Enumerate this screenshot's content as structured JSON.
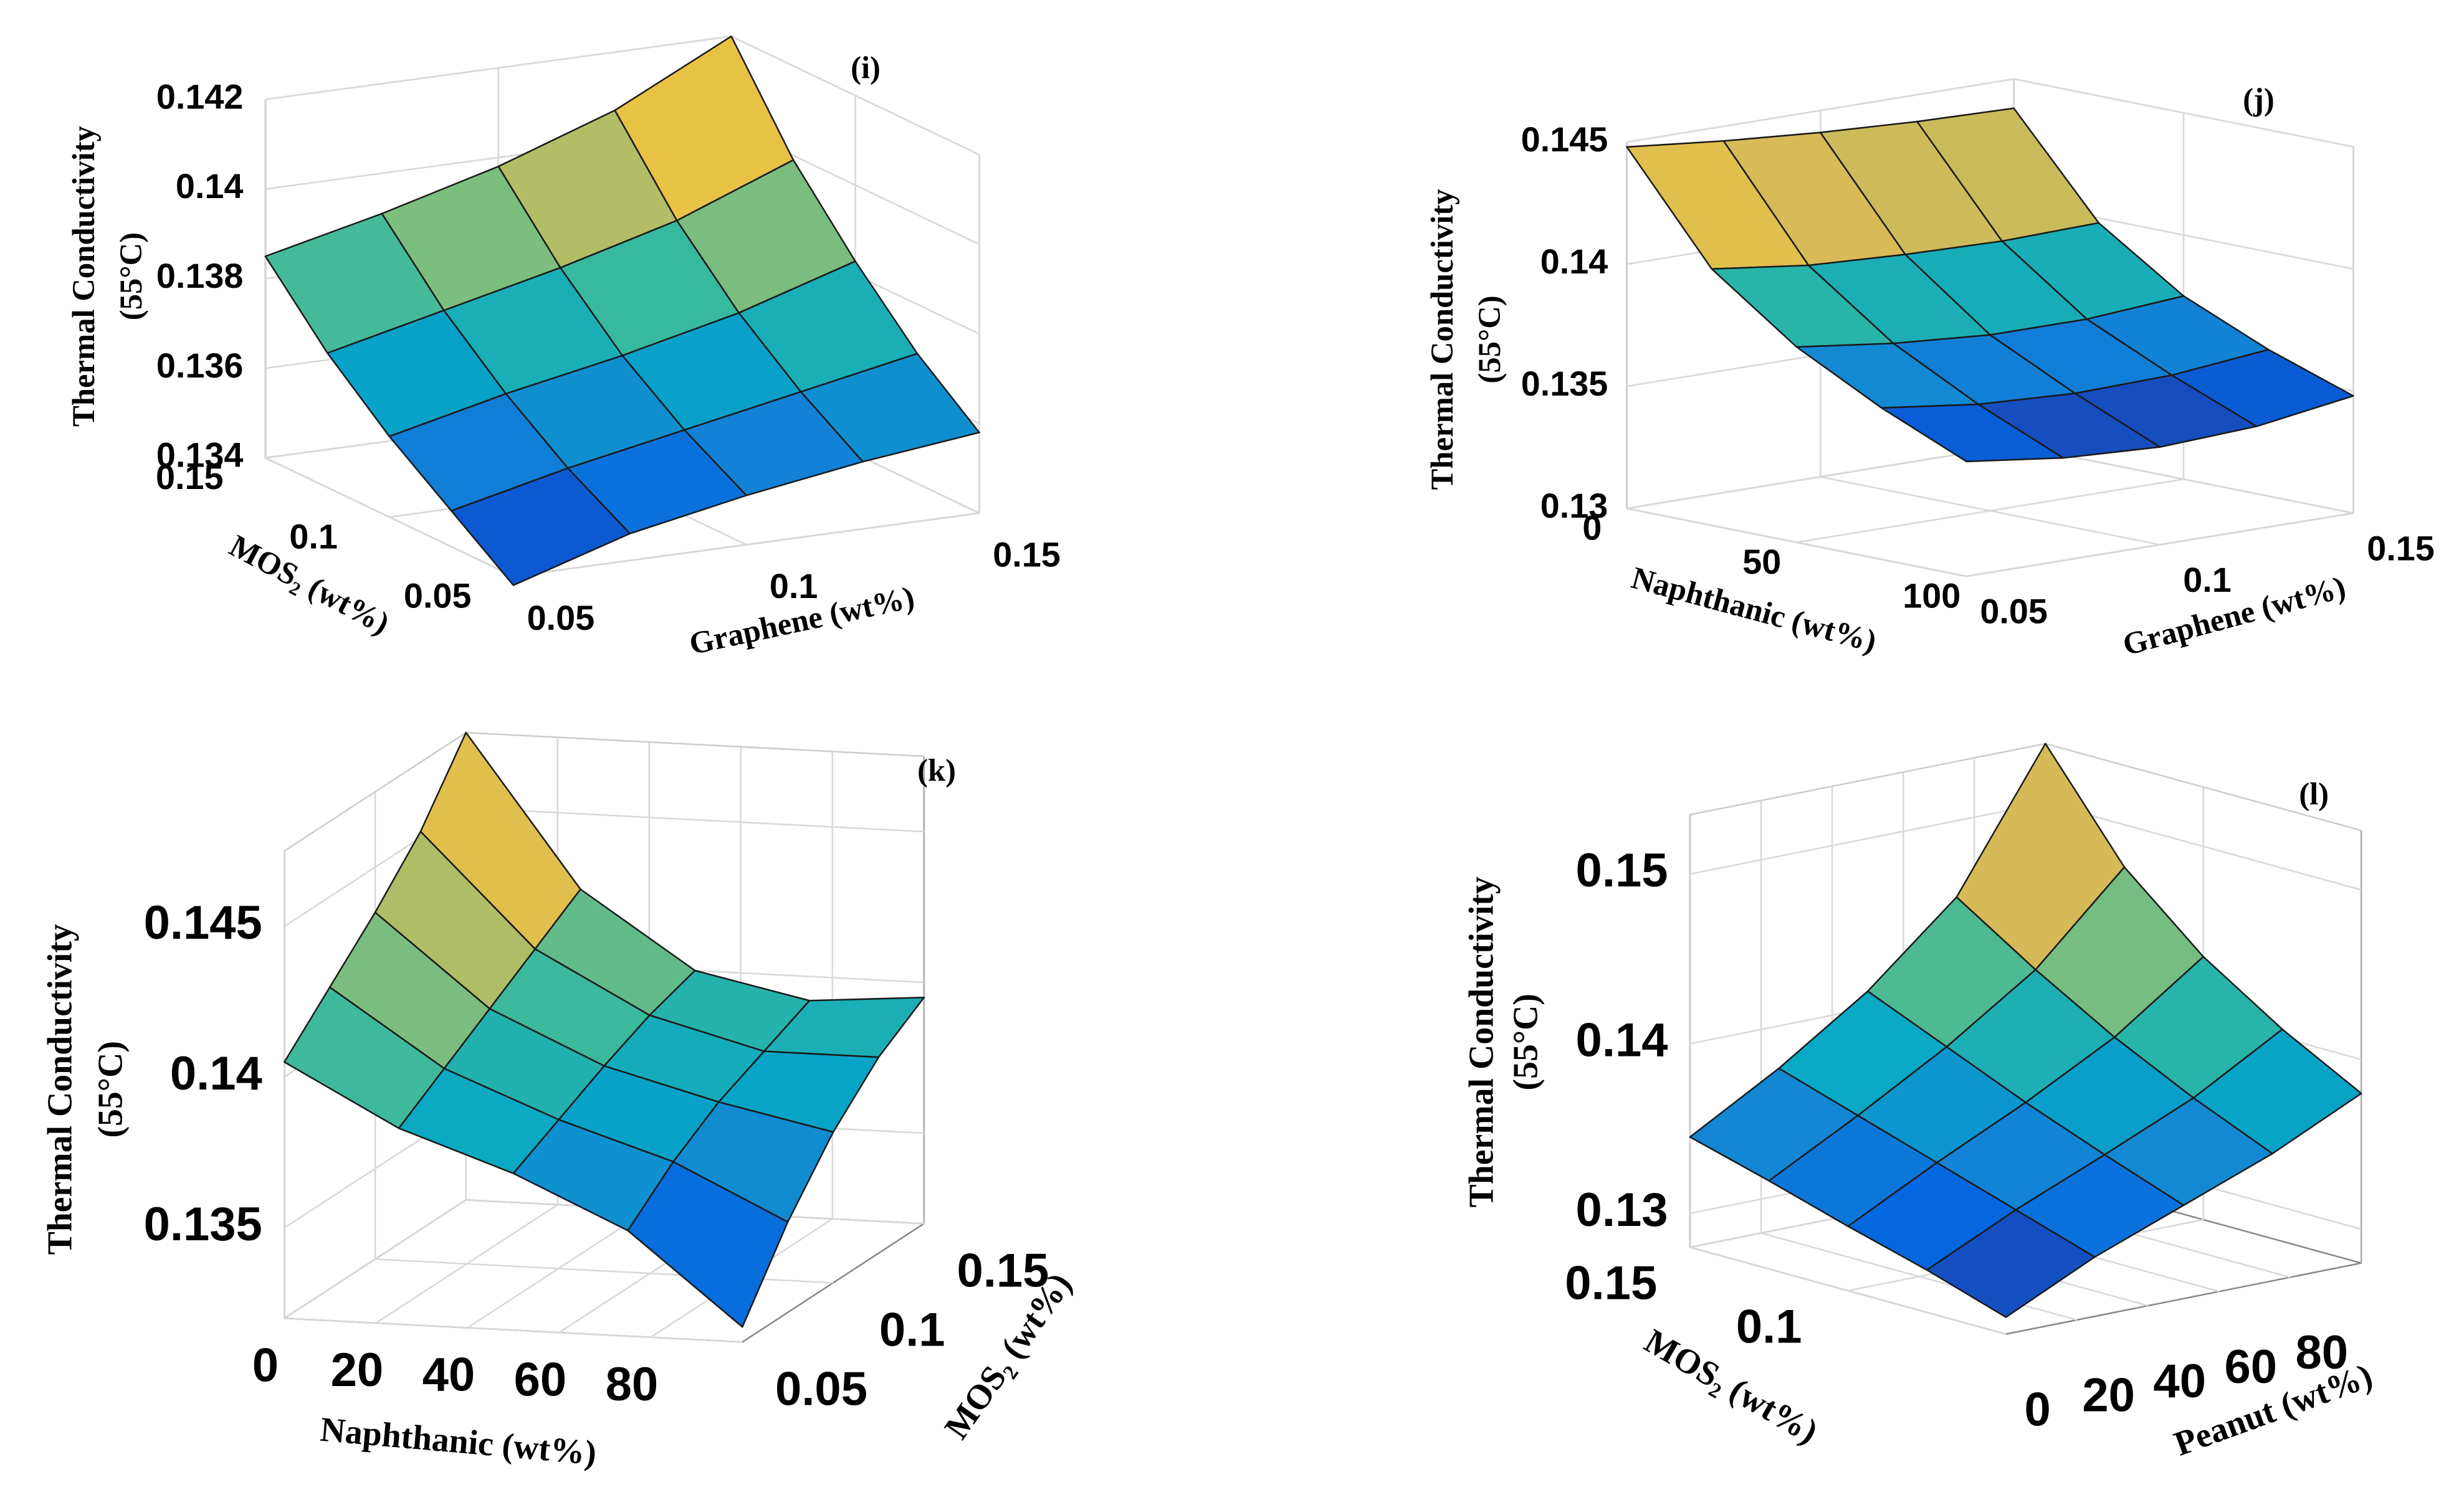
{
  "chart_data": [
    {
      "type": "surface",
      "panel_label": "(i)",
      "zlabel": [
        "Thermal Conductivity",
        "(55°C)"
      ],
      "xlabel": "Graphene (wt%)",
      "ylabel": "MOS₂ (wt%)",
      "xlim": [
        0.05,
        0.15
      ],
      "ylim": [
        0.05,
        0.15
      ],
      "zlim": [
        0.134,
        0.142
      ],
      "xticks": [
        0.05,
        0.1,
        0.15
      ],
      "yticks": [
        0.05,
        0.1,
        0.15
      ],
      "zticks": [
        0.134,
        0.136,
        0.138,
        0.14,
        0.142
      ],
      "x": [
        0.05,
        0.075,
        0.1,
        0.125,
        0.15
      ],
      "y": [
        0.05,
        0.075,
        0.1,
        0.125,
        0.15
      ],
      "z": [
        [
          0.1338,
          0.1346,
          0.1351,
          0.1355,
          0.1358
        ],
        [
          0.1348,
          0.1354,
          0.1359,
          0.1364,
          0.1369
        ],
        [
          0.1358,
          0.1364,
          0.1369,
          0.1375,
          0.1383
        ],
        [
          0.137,
          0.1376,
          0.1382,
          0.1389,
          0.1399
        ],
        [
          0.1385,
          0.1391,
          0.1398,
          0.1407,
          0.142
        ]
      ],
      "colormap": [
        "#352a87",
        "#0363e1",
        "#1485d4",
        "#06a7c6",
        "#38b99e",
        "#92bf73",
        "#d9ba56",
        "#fcce2e",
        "#f9fb0e"
      ]
    },
    {
      "type": "surface",
      "panel_label": "(j)",
      "zlabel": [
        "Thermal Conductivity",
        "(55°C)"
      ],
      "xlabel": "Graphene (wt%)",
      "ylabel": "Naphthanic (wt%)",
      "xlim": [
        0.05,
        0.15
      ],
      "ylim": [
        0,
        100
      ],
      "zlim": [
        0.13,
        0.145
      ],
      "xticks": [
        0.05,
        0.1,
        0.15
      ],
      "yticks": [
        0,
        50,
        100
      ],
      "zticks": [
        0.13,
        0.135,
        0.14,
        0.145
      ],
      "x": [
        0.05,
        0.075,
        0.1,
        0.125,
        0.15
      ],
      "y": [
        0,
        25,
        50,
        75,
        100
      ],
      "z": [
        [
          0.1448,
          0.1444,
          0.1441,
          0.1439,
          0.1438
        ],
        [
          0.1405,
          0.14,
          0.1398,
          0.1397,
          0.1398
        ],
        [
          0.138,
          0.1375,
          0.1372,
          0.1372,
          0.1375
        ],
        [
          0.1362,
          0.1357,
          0.1355,
          0.1356,
          0.136
        ],
        [
          0.1347,
          0.1342,
          0.134,
          0.1342,
          0.1348
        ]
      ],
      "colormap": [
        "#352a87",
        "#0363e1",
        "#1485d4",
        "#06a7c6",
        "#38b99e",
        "#92bf73",
        "#d9ba56",
        "#fcce2e",
        "#f9fb0e"
      ]
    },
    {
      "type": "surface",
      "panel_label": "(k)",
      "zlabel": [
        "Thermal Conductivity",
        "(55°C)"
      ],
      "xlabel": "Naphthanic (wt%)",
      "ylabel": "MOS₂ (wt%)",
      "xlim": [
        0,
        100
      ],
      "ylim": [
        0.05,
        0.15
      ],
      "zlim": [
        0.132,
        0.1475
      ],
      "xticks": [
        0,
        20,
        40,
        60,
        80
      ],
      "yticks": [
        0.05,
        0.1,
        0.15
      ],
      "zticks": [
        0.135,
        0.14,
        0.145
      ],
      "x": [
        0,
        25,
        50,
        75,
        100
      ],
      "y": [
        0.05,
        0.075,
        0.1,
        0.125,
        0.15
      ],
      "z": [
        [
          0.1405,
          0.1385,
          0.1372,
          0.1355,
          0.1325
        ],
        [
          0.142,
          0.1395,
          0.138,
          0.1368,
          0.135
        ],
        [
          0.1435,
          0.1405,
          0.1388,
          0.1378,
          0.137
        ],
        [
          0.1452,
          0.1415,
          0.1395,
          0.1385,
          0.1385
        ],
        [
          0.1475,
          0.1425,
          0.14,
          0.1392,
          0.1395
        ]
      ],
      "colormap": [
        "#352a87",
        "#0363e1",
        "#1485d4",
        "#06a7c6",
        "#38b99e",
        "#92bf73",
        "#d9ba56",
        "#fcce2e",
        "#f9fb0e"
      ]
    },
    {
      "type": "surface",
      "panel_label": "(l)",
      "zlabel": [
        "Thermal Conductivity",
        "(55°C)"
      ],
      "xlabel": "Peanut (wt%)",
      "ylabel": "MOS₂ (wt%)",
      "xlim": [
        0,
        100
      ],
      "ylim": [
        0.05,
        0.15
      ],
      "zlim": [
        0.128,
        0.1535
      ],
      "xticks": [
        0,
        20,
        40,
        60,
        80
      ],
      "yticks": [
        0.1,
        0.15
      ],
      "zticks": [
        0.13,
        0.14,
        0.15
      ],
      "x": [
        0,
        25,
        50,
        75,
        100
      ],
      "y": [
        0.05,
        0.075,
        0.1,
        0.125,
        0.15
      ],
      "z": [
        [
          0.129,
          0.1315,
          0.1335,
          0.1355,
          0.138
        ],
        [
          0.1305,
          0.133,
          0.1352,
          0.1375,
          0.1405
        ],
        [
          0.1318,
          0.1345,
          0.137,
          0.1398,
          0.1435
        ],
        [
          0.1332,
          0.136,
          0.139,
          0.1425,
          0.1475
        ],
        [
          0.1345,
          0.1375,
          0.141,
          0.1455,
          0.1535
        ]
      ],
      "colormap": [
        "#352a87",
        "#0363e1",
        "#1485d4",
        "#06a7c6",
        "#38b99e",
        "#92bf73",
        "#d9ba56",
        "#fcce2e",
        "#f9fb0e"
      ]
    }
  ]
}
